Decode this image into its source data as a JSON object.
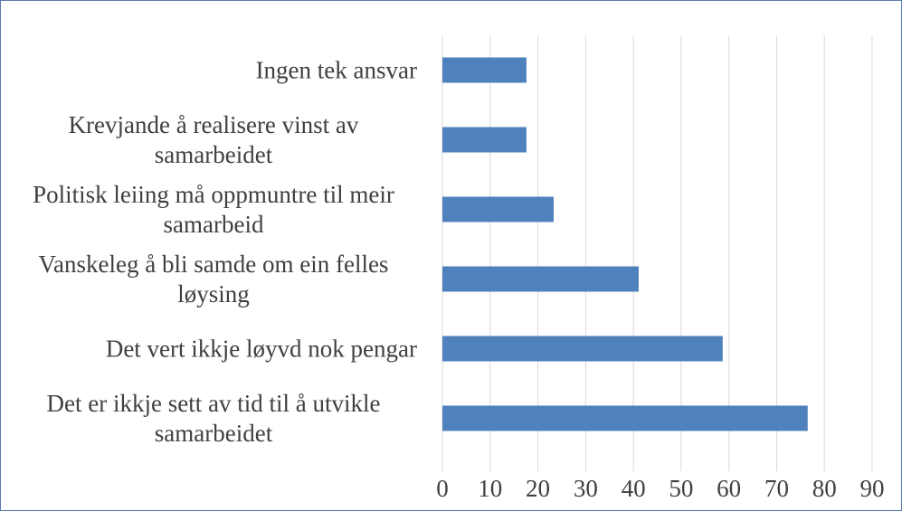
{
  "chart_data": {
    "type": "barh",
    "categories": [
      "Ingen tek ansvar",
      "Krevjande å realisere vinst av samarbeidet",
      "Politisk leiing må oppmuntre til meir samarbeid",
      "Vanskeleg å bli samde om ein felles løysing",
      "Det vert ikkje løyvd nok pengar",
      "Det er ikkje sett av tid til å utvikle samarbeidet"
    ],
    "values": [
      17.6,
      17.6,
      23.3,
      41.1,
      58.7,
      76.5
    ],
    "color": "#4f81bd",
    "xlim": [
      0,
      90
    ],
    "xticks": [
      0,
      10,
      20,
      30,
      40,
      50,
      60,
      70,
      80,
      90
    ],
    "grid": true
  }
}
